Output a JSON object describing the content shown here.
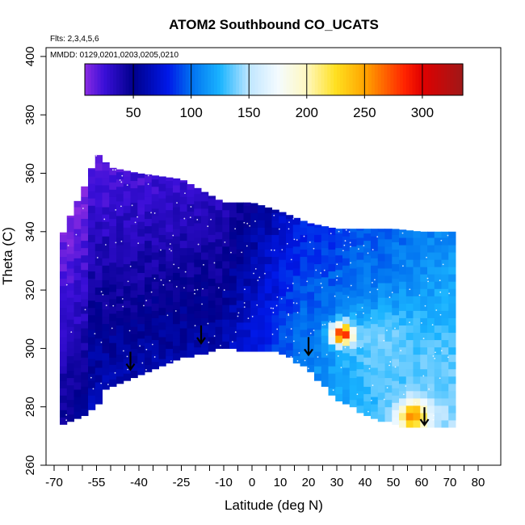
{
  "chart_data": {
    "type": "heatmap",
    "title": "ATOM2 Southbound CO_UCATS",
    "notes": {
      "flights": "Flts: 2,3,4,5,6",
      "dates": "MMDD: 0129,0201,0203,0205,0210"
    },
    "xlabel": "Latitude (deg N)",
    "ylabel": "Theta (C)",
    "xlim": [
      -70,
      85
    ],
    "ylim": [
      260,
      400
    ],
    "x_ticks": [
      -70,
      -55,
      -40,
      -25,
      -10,
      0,
      10,
      20,
      30,
      40,
      50,
      60,
      70,
      80
    ],
    "x_minor_ticks": [
      -65,
      -60,
      -50,
      -45,
      -35,
      -30,
      -20,
      -15,
      -5,
      5,
      15,
      25,
      35,
      45,
      55,
      65,
      75
    ],
    "y_ticks": [
      260,
      280,
      300,
      320,
      340,
      360,
      380,
      400
    ],
    "colorbar": {
      "min": 8,
      "max": 335,
      "ticks": [
        50,
        100,
        150,
        200,
        250,
        300
      ],
      "stops": [
        {
          "v": 8,
          "color": "#8a2be2"
        },
        {
          "v": 25,
          "color": "#3a0fd8"
        },
        {
          "v": 50,
          "color": "#00008b"
        },
        {
          "v": 80,
          "color": "#0018e8"
        },
        {
          "v": 100,
          "color": "#0070f0"
        },
        {
          "v": 125,
          "color": "#1ab4ff"
        },
        {
          "v": 150,
          "color": "#bfe6ff"
        },
        {
          "v": 175,
          "color": "#f4fbff"
        },
        {
          "v": 200,
          "color": "#fff8c0"
        },
        {
          "v": 225,
          "color": "#ffe020"
        },
        {
          "v": 250,
          "color": "#ffa500"
        },
        {
          "v": 285,
          "color": "#ff2200"
        },
        {
          "v": 300,
          "color": "#e00000"
        },
        {
          "v": 335,
          "color": "#a01818"
        }
      ]
    },
    "field": {
      "boundary_top": [
        [
          -68,
          336
        ],
        [
          -66,
          342
        ],
        [
          -62,
          350
        ],
        [
          -58,
          358
        ],
        [
          -55,
          367
        ],
        [
          -50,
          362
        ],
        [
          -40,
          360
        ],
        [
          -25,
          358
        ],
        [
          -10,
          350
        ],
        [
          0,
          350
        ],
        [
          10,
          347
        ],
        [
          20,
          343
        ],
        [
          30,
          341
        ],
        [
          40,
          341
        ],
        [
          50,
          341
        ],
        [
          60,
          340
        ],
        [
          65,
          340
        ],
        [
          71,
          340
        ]
      ],
      "boundary_bottom": [
        [
          -68,
          274
        ],
        [
          -65,
          275
        ],
        [
          -55,
          280
        ],
        [
          -52,
          286
        ],
        [
          -43,
          290
        ],
        [
          -35,
          293
        ],
        [
          -25,
          297
        ],
        [
          -20,
          298
        ],
        [
          -10,
          301
        ],
        [
          -5,
          300
        ],
        [
          0,
          299
        ],
        [
          10,
          299
        ],
        [
          20,
          293
        ],
        [
          25,
          288
        ],
        [
          30,
          283
        ],
        [
          40,
          278
        ],
        [
          45,
          276
        ],
        [
          52,
          274
        ],
        [
          60,
          273
        ],
        [
          71,
          273
        ]
      ],
      "hotspots": [
        {
          "lat": 32,
          "theta": 305,
          "value": 290,
          "spread": 3
        },
        {
          "lat": 57,
          "theta": 277,
          "value": 260,
          "spread": 4
        },
        {
          "lat": 47,
          "theta": 300,
          "value": 140,
          "spread": 10
        },
        {
          "lat": 62,
          "theta": 287,
          "value": 135,
          "spread": 8
        }
      ]
    },
    "arrows": [
      {
        "lat": -43,
        "theta": 295
      },
      {
        "lat": -18,
        "theta": 304
      },
      {
        "lat": 20,
        "theta": 300
      },
      {
        "lat": 61,
        "theta": 276
      }
    ],
    "grid": false
  }
}
